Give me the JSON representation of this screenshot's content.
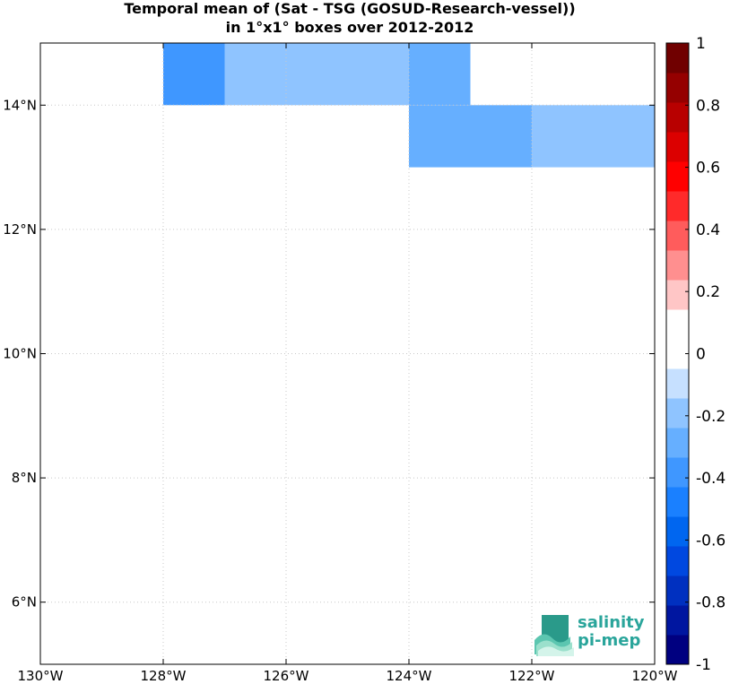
{
  "chart_data": {
    "type": "heatmap",
    "title": "Temporal mean of (Sat - TSG (GOSUD-Research-vessel))",
    "subtitle": "in 1°x1° boxes over 2012-2012",
    "xlim": [
      -130,
      -120
    ],
    "ylim": [
      5,
      15
    ],
    "x_ticks": [
      -130,
      -128,
      -126,
      -124,
      -122,
      -120
    ],
    "x_tick_labels": [
      "130°W",
      "128°W",
      "126°W",
      "124°W",
      "122°W",
      "120°W"
    ],
    "y_ticks": [
      6,
      8,
      10,
      12,
      14
    ],
    "y_tick_labels": [
      "6°N",
      "8°N",
      "10°N",
      "12°N",
      "14°N"
    ],
    "grid": true,
    "cells": [
      {
        "lon": -128,
        "lat": 14,
        "value": -0.35
      },
      {
        "lon": -127,
        "lat": 14,
        "value": -0.15
      },
      {
        "lon": -126,
        "lat": 14,
        "value": -0.15
      },
      {
        "lon": -125,
        "lat": 14,
        "value": -0.15
      },
      {
        "lon": -124,
        "lat": 14,
        "value": -0.3
      },
      {
        "lon": -124,
        "lat": 13,
        "value": -0.3
      },
      {
        "lon": -123,
        "lat": 13,
        "value": -0.3
      },
      {
        "lon": -122,
        "lat": 13,
        "value": -0.15
      },
      {
        "lon": -121,
        "lat": 13,
        "value": -0.15
      }
    ],
    "colorbar": {
      "range": [
        -1,
        1
      ],
      "step": 0.1,
      "tick_values": [
        -1,
        -0.8,
        -0.6,
        -0.4,
        -0.2,
        0,
        0.2,
        0.4,
        0.6,
        0.8,
        1
      ],
      "tick_labels": [
        "-1",
        "-0.8",
        "-0.6",
        "-0.4",
        "-0.2",
        "0",
        "0.2",
        "0.4",
        "0.6",
        "0.8",
        "1"
      ],
      "colors": [
        "#000080",
        "#0016a0",
        "#0030c0",
        "#0048e0",
        "#0066f0",
        "#1a80ff",
        "#3f97ff",
        "#66afff",
        "#8fc4ff",
        "#c6e0ff",
        "#ffffff",
        "#ffffff",
        "#ffc6c6",
        "#ff8f8f",
        "#ff5c5c",
        "#ff2a2a",
        "#ff0000",
        "#dc0000",
        "#b80000",
        "#950000",
        "#700000"
      ]
    }
  },
  "logo": {
    "line1": "salinity",
    "line2": "pi-mep"
  }
}
